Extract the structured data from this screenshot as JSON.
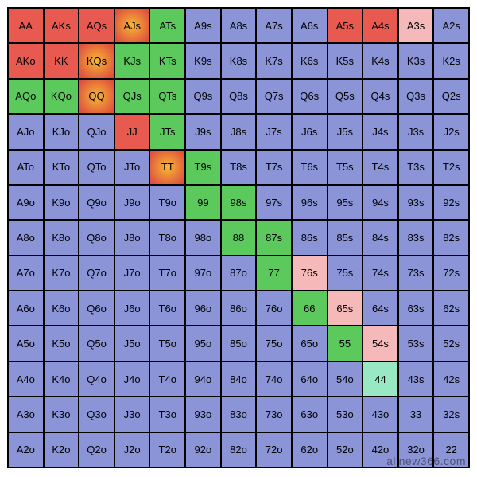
{
  "chart": {
    "type": "poker-hand-grid",
    "grid_size": 13,
    "cell_font_size": 13,
    "border_color": "#000000",
    "watermark": "allnew366.com",
    "watermark_color": "rgba(0,0,0,0.45)",
    "colors": {
      "default": "#8a94d6",
      "red": "#e85a4f",
      "green": "#5bc95b",
      "pink": "#f5b9b9",
      "mint": "#97e8c3",
      "orange_grad": [
        "#f7b733",
        "#de4f3f"
      ]
    },
    "ranks": [
      "A",
      "K",
      "Q",
      "J",
      "T",
      "9",
      "8",
      "7",
      "6",
      "5",
      "4",
      "3",
      "2"
    ],
    "cells": [
      [
        "AA",
        "red"
      ],
      [
        "AKs",
        "red"
      ],
      [
        "AQs",
        "red"
      ],
      [
        "AJs",
        "orange_grad"
      ],
      [
        "ATs",
        "green"
      ],
      [
        "A9s",
        "default"
      ],
      [
        "A8s",
        "default"
      ],
      [
        "A7s",
        "default"
      ],
      [
        "A6s",
        "default"
      ],
      [
        "A5s",
        "red"
      ],
      [
        "A4s",
        "red"
      ],
      [
        "A3s",
        "pink"
      ],
      [
        "A2s",
        "default"
      ],
      [
        "AKo",
        "red"
      ],
      [
        "KK",
        "red"
      ],
      [
        "KQs",
        "orange_grad"
      ],
      [
        "KJs",
        "green"
      ],
      [
        "KTs",
        "green"
      ],
      [
        "K9s",
        "default"
      ],
      [
        "K8s",
        "default"
      ],
      [
        "K7s",
        "default"
      ],
      [
        "K6s",
        "default"
      ],
      [
        "K5s",
        "default"
      ],
      [
        "K4s",
        "default"
      ],
      [
        "K3s",
        "default"
      ],
      [
        "K2s",
        "default"
      ],
      [
        "AQo",
        "green"
      ],
      [
        "KQo",
        "green"
      ],
      [
        "QQ",
        "orange_grad"
      ],
      [
        "QJs",
        "green"
      ],
      [
        "QTs",
        "green"
      ],
      [
        "Q9s",
        "default"
      ],
      [
        "Q8s",
        "default"
      ],
      [
        "Q7s",
        "default"
      ],
      [
        "Q6s",
        "default"
      ],
      [
        "Q5s",
        "default"
      ],
      [
        "Q4s",
        "default"
      ],
      [
        "Q3s",
        "default"
      ],
      [
        "Q2s",
        "default"
      ],
      [
        "AJo",
        "default"
      ],
      [
        "KJo",
        "default"
      ],
      [
        "QJo",
        "default"
      ],
      [
        "JJ",
        "red"
      ],
      [
        "JTs",
        "green"
      ],
      [
        "J9s",
        "default"
      ],
      [
        "J8s",
        "default"
      ],
      [
        "J7s",
        "default"
      ],
      [
        "J6s",
        "default"
      ],
      [
        "J5s",
        "default"
      ],
      [
        "J4s",
        "default"
      ],
      [
        "J3s",
        "default"
      ],
      [
        "J2s",
        "default"
      ],
      [
        "ATo",
        "default"
      ],
      [
        "KTo",
        "default"
      ],
      [
        "QTo",
        "default"
      ],
      [
        "JTo",
        "default"
      ],
      [
        "TT",
        "orange_grad"
      ],
      [
        "T9s",
        "green"
      ],
      [
        "T8s",
        "default"
      ],
      [
        "T7s",
        "default"
      ],
      [
        "T6s",
        "default"
      ],
      [
        "T5s",
        "default"
      ],
      [
        "T4s",
        "default"
      ],
      [
        "T3s",
        "default"
      ],
      [
        "T2s",
        "default"
      ],
      [
        "A9o",
        "default"
      ],
      [
        "K9o",
        "default"
      ],
      [
        "Q9o",
        "default"
      ],
      [
        "J9o",
        "default"
      ],
      [
        "T9o",
        "default"
      ],
      [
        "99",
        "green"
      ],
      [
        "98s",
        "green"
      ],
      [
        "97s",
        "default"
      ],
      [
        "96s",
        "default"
      ],
      [
        "95s",
        "default"
      ],
      [
        "94s",
        "default"
      ],
      [
        "93s",
        "default"
      ],
      [
        "92s",
        "default"
      ],
      [
        "A8o",
        "default"
      ],
      [
        "K8o",
        "default"
      ],
      [
        "Q8o",
        "default"
      ],
      [
        "J8o",
        "default"
      ],
      [
        "T8o",
        "default"
      ],
      [
        "98o",
        "default"
      ],
      [
        "88",
        "green"
      ],
      [
        "87s",
        "green"
      ],
      [
        "86s",
        "default"
      ],
      [
        "85s",
        "default"
      ],
      [
        "84s",
        "default"
      ],
      [
        "83s",
        "default"
      ],
      [
        "82s",
        "default"
      ],
      [
        "A7o",
        "default"
      ],
      [
        "K7o",
        "default"
      ],
      [
        "Q7o",
        "default"
      ],
      [
        "J7o",
        "default"
      ],
      [
        "T7o",
        "default"
      ],
      [
        "97o",
        "default"
      ],
      [
        "87o",
        "default"
      ],
      [
        "77",
        "green"
      ],
      [
        "76s",
        "pink"
      ],
      [
        "75s",
        "default"
      ],
      [
        "74s",
        "default"
      ],
      [
        "73s",
        "default"
      ],
      [
        "72s",
        "default"
      ],
      [
        "A6o",
        "default"
      ],
      [
        "K6o",
        "default"
      ],
      [
        "Q6o",
        "default"
      ],
      [
        "J6o",
        "default"
      ],
      [
        "T6o",
        "default"
      ],
      [
        "96o",
        "default"
      ],
      [
        "86o",
        "default"
      ],
      [
        "76o",
        "default"
      ],
      [
        "66",
        "green"
      ],
      [
        "65s",
        "pink"
      ],
      [
        "64s",
        "default"
      ],
      [
        "63s",
        "default"
      ],
      [
        "62s",
        "default"
      ],
      [
        "A5o",
        "default"
      ],
      [
        "K5o",
        "default"
      ],
      [
        "Q5o",
        "default"
      ],
      [
        "J5o",
        "default"
      ],
      [
        "T5o",
        "default"
      ],
      [
        "95o",
        "default"
      ],
      [
        "85o",
        "default"
      ],
      [
        "75o",
        "default"
      ],
      [
        "65o",
        "default"
      ],
      [
        "55",
        "green"
      ],
      [
        "54s",
        "pink"
      ],
      [
        "53s",
        "default"
      ],
      [
        "52s",
        "default"
      ],
      [
        "A4o",
        "default"
      ],
      [
        "K4o",
        "default"
      ],
      [
        "Q4o",
        "default"
      ],
      [
        "J4o",
        "default"
      ],
      [
        "T4o",
        "default"
      ],
      [
        "94o",
        "default"
      ],
      [
        "84o",
        "default"
      ],
      [
        "74o",
        "default"
      ],
      [
        "64o",
        "default"
      ],
      [
        "54o",
        "default"
      ],
      [
        "44",
        "mint"
      ],
      [
        "43s",
        "default"
      ],
      [
        "42s",
        "default"
      ],
      [
        "A3o",
        "default"
      ],
      [
        "K3o",
        "default"
      ],
      [
        "Q3o",
        "default"
      ],
      [
        "J3o",
        "default"
      ],
      [
        "T3o",
        "default"
      ],
      [
        "93o",
        "default"
      ],
      [
        "83o",
        "default"
      ],
      [
        "73o",
        "default"
      ],
      [
        "63o",
        "default"
      ],
      [
        "53o",
        "default"
      ],
      [
        "43o",
        "default"
      ],
      [
        "33",
        "default"
      ],
      [
        "32s",
        "default"
      ],
      [
        "A2o",
        "default"
      ],
      [
        "K2o",
        "default"
      ],
      [
        "Q2o",
        "default"
      ],
      [
        "J2o",
        "default"
      ],
      [
        "T2o",
        "default"
      ],
      [
        "92o",
        "default"
      ],
      [
        "82o",
        "default"
      ],
      [
        "72o",
        "default"
      ],
      [
        "62o",
        "default"
      ],
      [
        "52o",
        "default"
      ],
      [
        "42o",
        "default"
      ],
      [
        "32o",
        "default"
      ],
      [
        "22",
        "default"
      ]
    ]
  }
}
